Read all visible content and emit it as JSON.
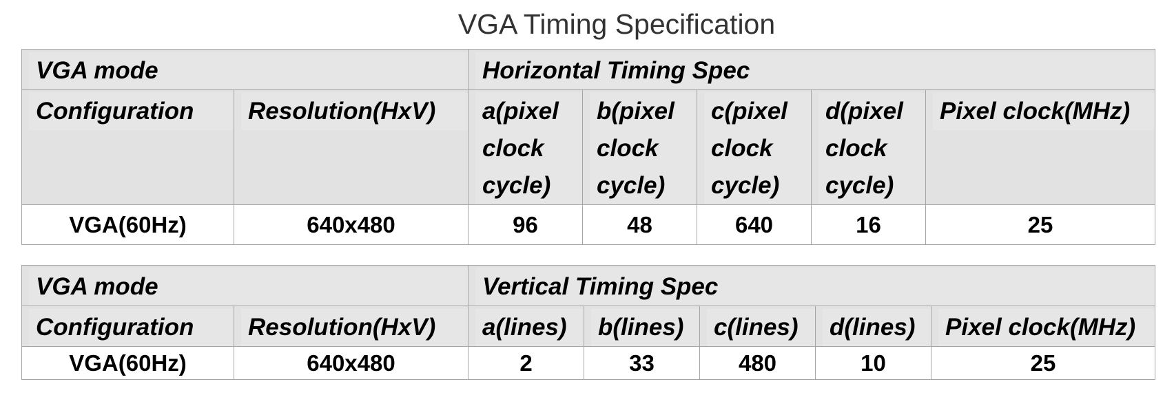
{
  "title": "VGA Timing Specification",
  "horizontal": {
    "mode_header": "VGA mode",
    "spec_header": "Horizontal Timing Spec",
    "columns": {
      "configuration": "Configuration",
      "resolution": "Resolution(HxV)",
      "a": "a(pixel clock cycle)",
      "b": "b(pixel clock cycle)",
      "c": "c(pixel clock cycle)",
      "d": "d(pixel clock cycle)",
      "pixel_clock": "Pixel clock(MHz)"
    },
    "row": {
      "configuration": "VGA(60Hz)",
      "resolution": "640x480",
      "a": "96",
      "b": "48",
      "c": "640",
      "d": "16",
      "pixel_clock": "25"
    }
  },
  "vertical": {
    "mode_header": "VGA mode",
    "spec_header": "Vertical Timing Spec",
    "columns": {
      "configuration": "Configuration",
      "resolution": "Resolution(HxV)",
      "a": "a(lines)",
      "b": "b(lines)",
      "c": "c(lines)",
      "d": "d(lines)",
      "pixel_clock": "Pixel clock(MHz)"
    },
    "row": {
      "configuration": "VGA(60Hz)",
      "resolution": "640x480",
      "a": "2",
      "b": "33",
      "c": "480",
      "d": "10",
      "pixel_clock": "25"
    }
  }
}
